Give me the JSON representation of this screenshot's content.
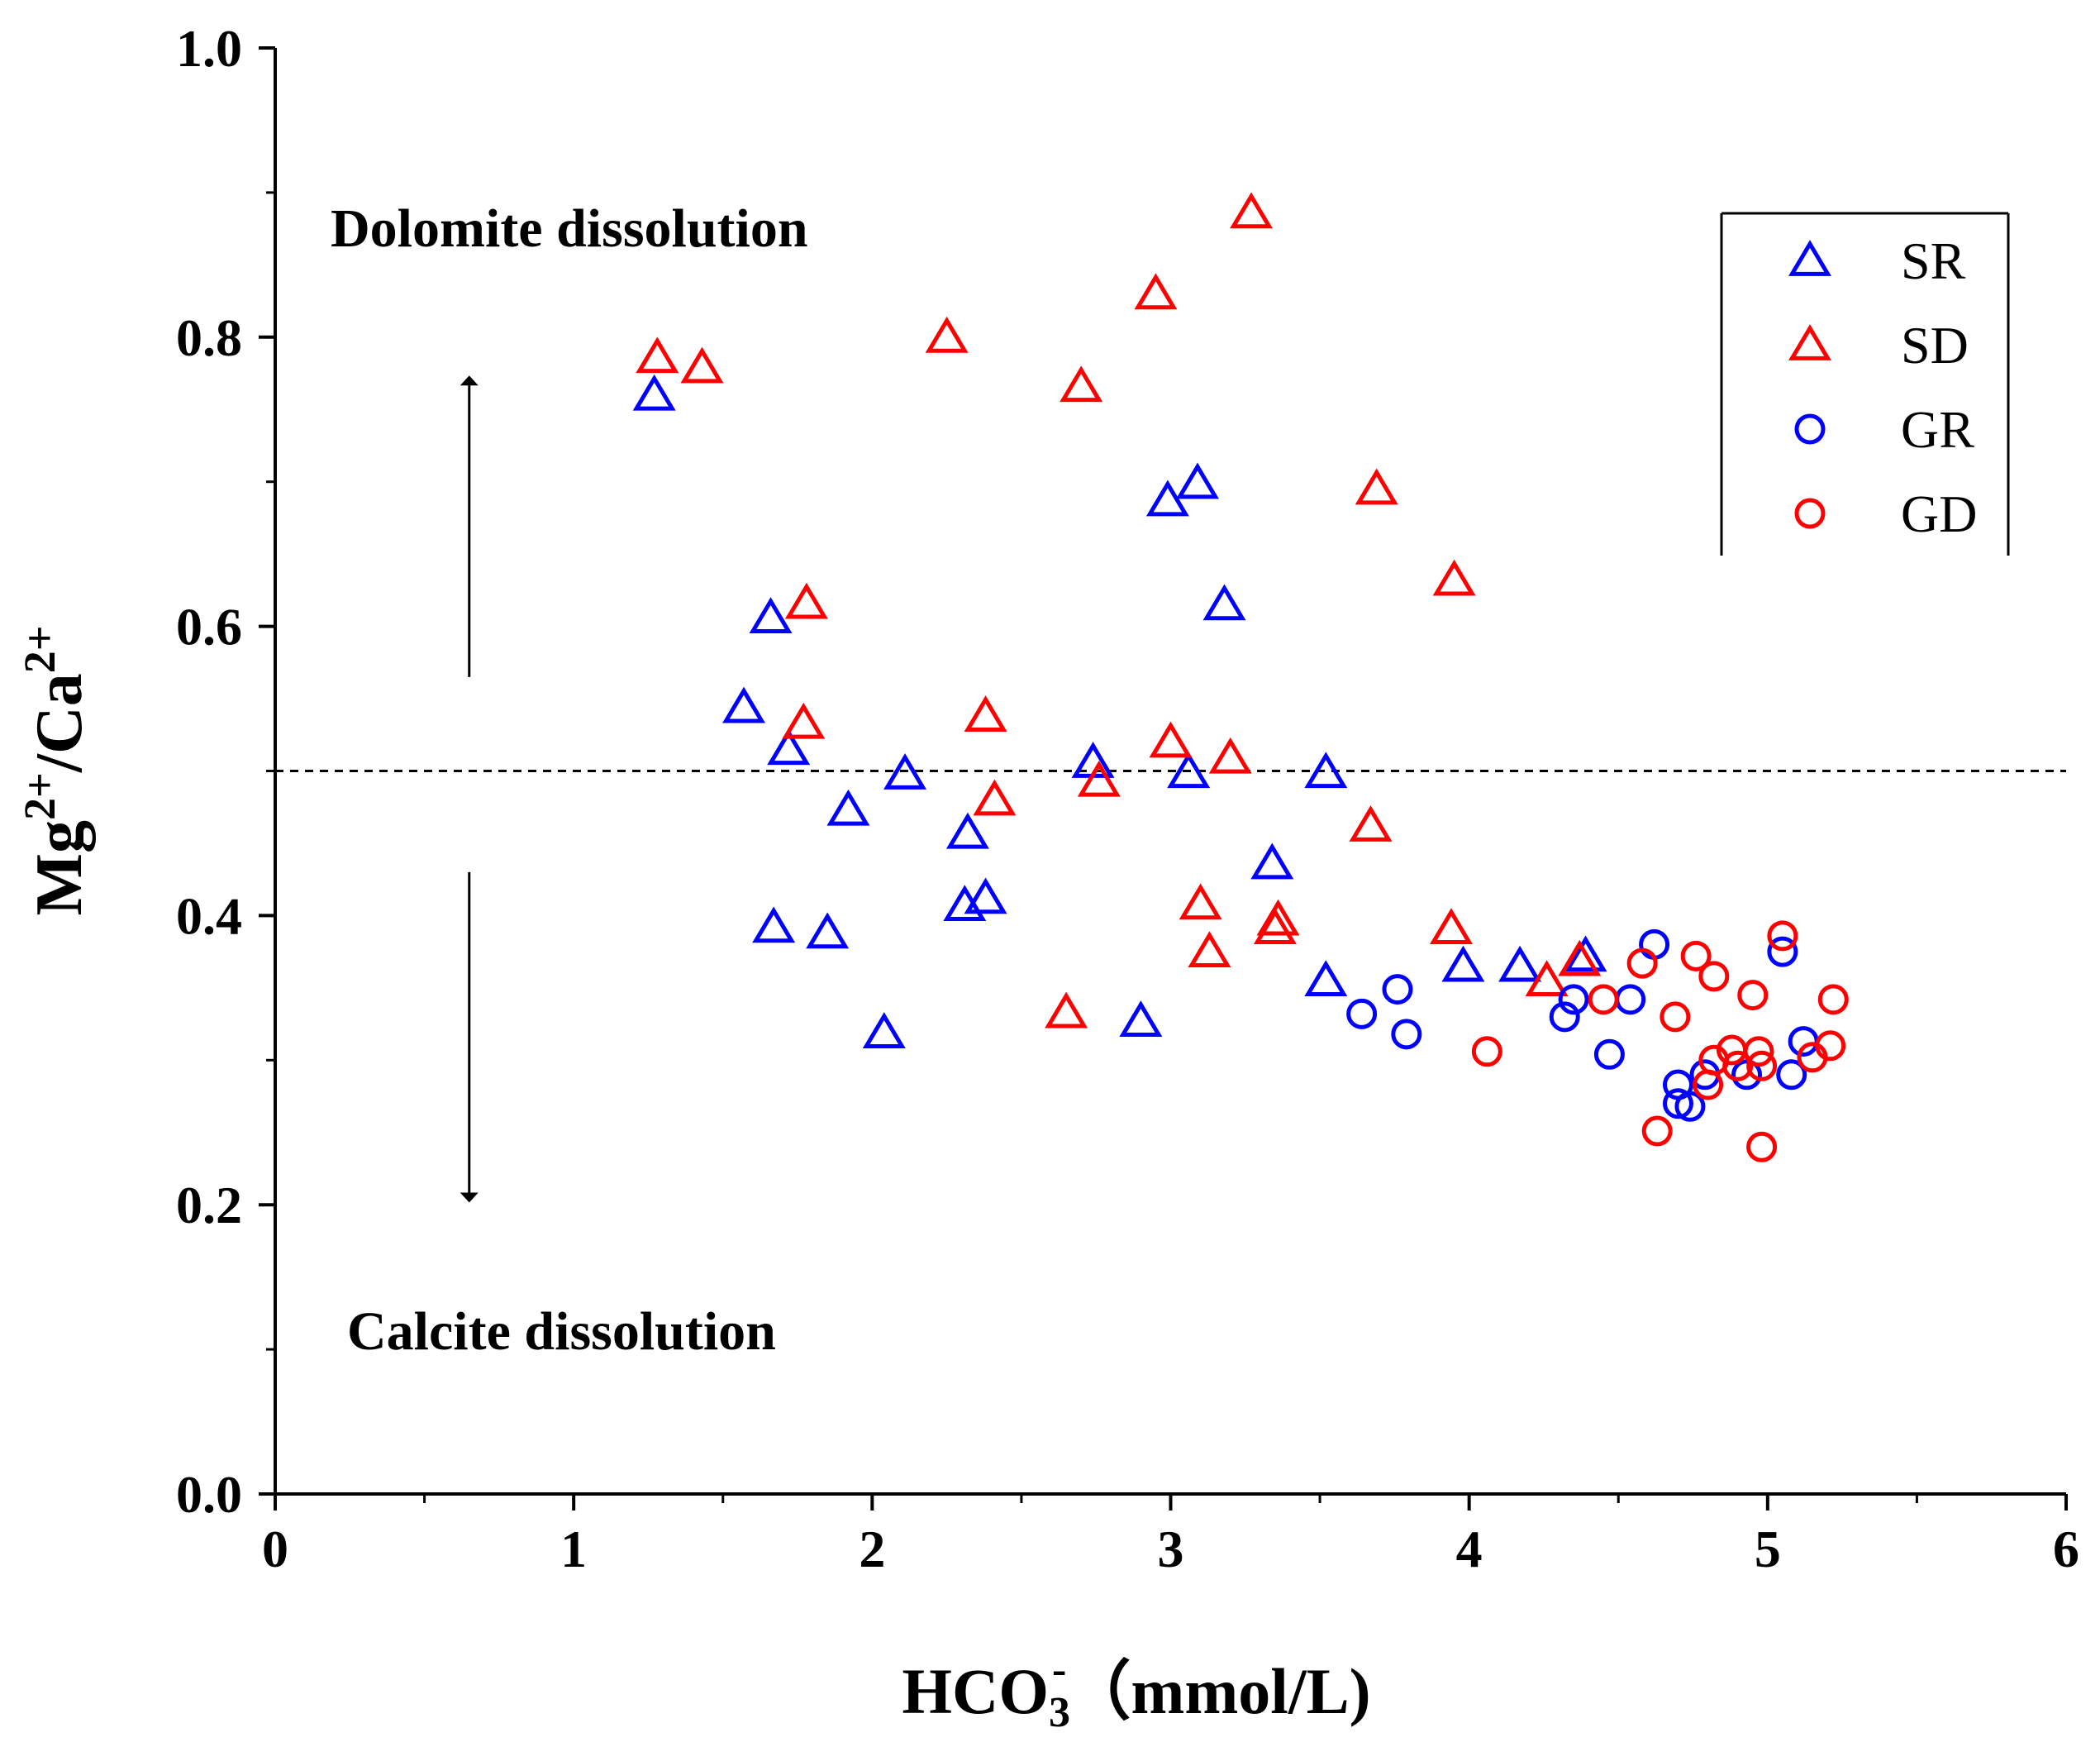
{
  "chart_data": {
    "type": "scatter",
    "xlabel": {
      "base": "HCO",
      "sub": "3",
      "sup": "-",
      "rest": "（mmol/L)"
    },
    "ylabel": {
      "p1": "Mg",
      "s1": "2+",
      "p2": "/Ca",
      "s2": "2+"
    },
    "xlim": [
      0,
      6
    ],
    "ylim": [
      0,
      1.0
    ],
    "xticks": [
      "0",
      "1",
      "2",
      "3",
      "4",
      "5",
      "6"
    ],
    "yticks": [
      "0.0",
      "0.2",
      "0.4",
      "0.6",
      "0.8",
      "1.0"
    ],
    "reference_line": {
      "y": 0.5,
      "style": "dashed"
    },
    "annotations": {
      "upper": "Dolomite dissolution",
      "lower": "Calcite dissolution"
    },
    "arrows": [
      {
        "x": 0.65,
        "from": 0.565,
        "to": 0.77,
        "direction": "up"
      },
      {
        "x": 0.65,
        "from": 0.43,
        "to": 0.205,
        "direction": "down"
      }
    ],
    "legend_position": "top-right",
    "series": [
      {
        "name": "SR",
        "marker": "triangle",
        "color": "#0000ff",
        "points": [
          [
            1.27,
            0.76
          ],
          [
            1.57,
            0.544
          ],
          [
            1.66,
            0.606
          ],
          [
            1.72,
            0.515
          ],
          [
            1.67,
            0.392
          ],
          [
            1.85,
            0.388
          ],
          [
            1.92,
            0.473
          ],
          [
            2.04,
            0.319
          ],
          [
            2.11,
            0.498
          ],
          [
            2.32,
            0.457
          ],
          [
            2.31,
            0.407
          ],
          [
            2.38,
            0.412
          ],
          [
            2.74,
            0.506
          ],
          [
            2.9,
            0.327
          ],
          [
            2.99,
            0.687
          ],
          [
            3.09,
            0.699
          ],
          [
            3.06,
            0.499
          ],
          [
            3.18,
            0.615
          ],
          [
            3.34,
            0.436
          ],
          [
            3.52,
            0.355
          ],
          [
            3.52,
            0.499
          ],
          [
            3.98,
            0.365
          ],
          [
            4.17,
            0.365
          ],
          [
            4.39,
            0.372
          ]
        ]
      },
      {
        "name": "SD",
        "marker": "triangle",
        "color": "#ff0000",
        "points": [
          [
            1.28,
            0.786
          ],
          [
            1.43,
            0.779
          ],
          [
            1.78,
            0.616
          ],
          [
            1.77,
            0.533
          ],
          [
            2.25,
            0.8
          ],
          [
            2.38,
            0.538
          ],
          [
            2.41,
            0.48
          ],
          [
            2.65,
            0.333
          ],
          [
            2.7,
            0.766
          ],
          [
            2.76,
            0.493
          ],
          [
            2.95,
            0.83
          ],
          [
            3.0,
            0.52
          ],
          [
            3.1,
            0.408
          ],
          [
            3.13,
            0.375
          ],
          [
            3.2,
            0.509
          ],
          [
            3.27,
            0.886
          ],
          [
            3.36,
            0.397
          ],
          [
            3.35,
            0.391
          ],
          [
            3.67,
            0.462
          ],
          [
            3.69,
            0.695
          ],
          [
            3.94,
            0.391
          ],
          [
            3.95,
            0.632
          ],
          [
            4.26,
            0.355
          ],
          [
            4.37,
            0.369
          ]
        ]
      },
      {
        "name": "GR",
        "marker": "circle",
        "color": "#0000ff",
        "points": [
          [
            3.64,
            0.332
          ],
          [
            3.76,
            0.349
          ],
          [
            3.79,
            0.318
          ],
          [
            4.32,
            0.33
          ],
          [
            4.35,
            0.342
          ],
          [
            4.54,
            0.342
          ],
          [
            4.47,
            0.304
          ],
          [
            4.62,
            0.38
          ],
          [
            4.7,
            0.283
          ],
          [
            4.7,
            0.27
          ],
          [
            4.74,
            0.268
          ],
          [
            4.79,
            0.29
          ],
          [
            4.93,
            0.29
          ],
          [
            5.05,
            0.375
          ],
          [
            5.08,
            0.29
          ],
          [
            5.12,
            0.313
          ]
        ]
      },
      {
        "name": "GD",
        "marker": "circle",
        "color": "#ff0000",
        "points": [
          [
            4.06,
            0.306
          ],
          [
            4.45,
            0.342
          ],
          [
            4.58,
            0.367
          ],
          [
            4.63,
            0.251
          ],
          [
            4.69,
            0.33
          ],
          [
            4.76,
            0.372
          ],
          [
            4.82,
            0.358
          ],
          [
            4.8,
            0.283
          ],
          [
            4.82,
            0.3
          ],
          [
            4.88,
            0.307
          ],
          [
            4.9,
            0.296
          ],
          [
            4.95,
            0.345
          ],
          [
            4.97,
            0.306
          ],
          [
            4.98,
            0.24
          ],
          [
            4.98,
            0.296
          ],
          [
            5.05,
            0.386
          ],
          [
            5.15,
            0.302
          ],
          [
            5.21,
            0.31
          ],
          [
            5.22,
            0.342
          ]
        ]
      }
    ]
  }
}
